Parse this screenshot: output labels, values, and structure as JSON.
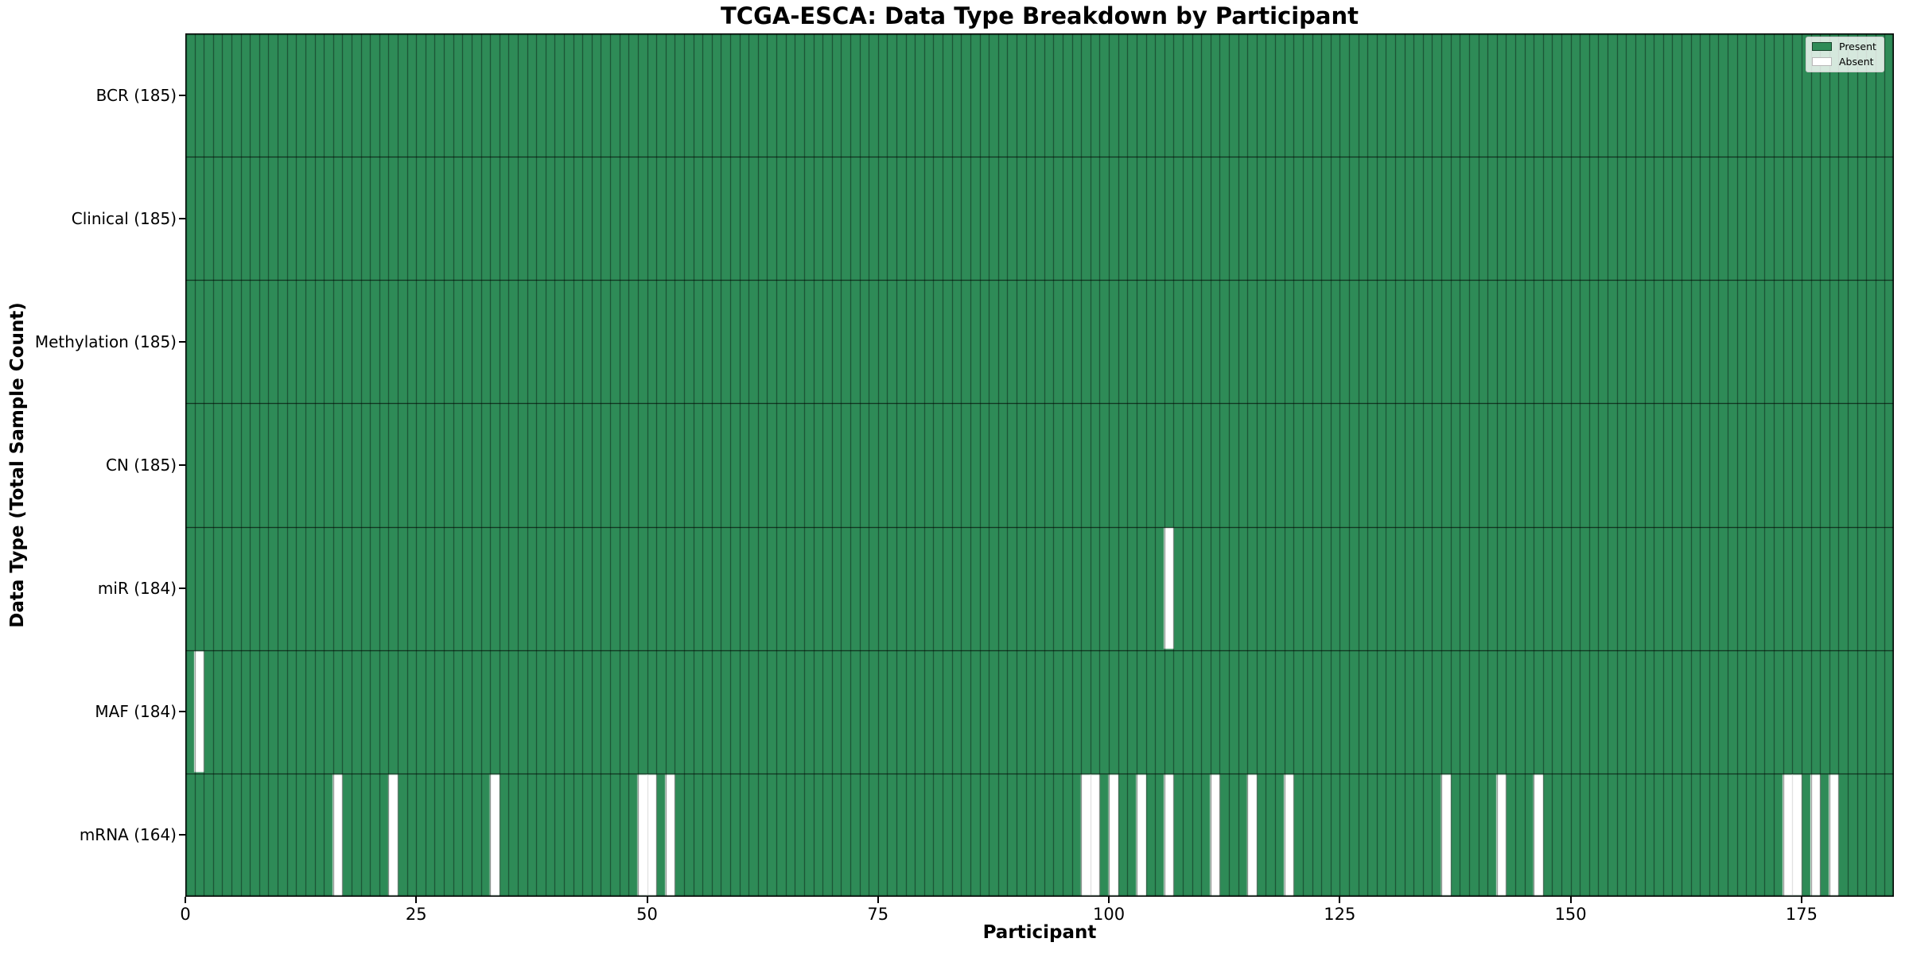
{
  "title": "TCGA-ESCA: Data Type Breakdown by Participant",
  "x_axis_label": "Participant",
  "y_axis_label": "Data Type (Total Sample Count)",
  "legend": {
    "position": "upper right",
    "items": [
      {
        "label": "Present",
        "color": "#2e8b57"
      },
      {
        "label": "Absent",
        "color": "#ffffff"
      }
    ]
  },
  "colors": {
    "present": "#2e8b57",
    "absent": "#ffffff",
    "cell_edge": "rgba(0,0,0,0.5)",
    "absent_edge": "rgba(0,0,0,0.15)",
    "row_line": "rgba(0,0,0,0.8)",
    "spine": "#000000",
    "background": "#ffffff"
  },
  "chart_data": {
    "type": "heatmap",
    "title": "TCGA-ESCA: Data Type Breakdown by Participant",
    "xlabel": "Participant",
    "ylabel": "Data Type (Total Sample Count)",
    "x_range": [
      0,
      185
    ],
    "n_participants": 185,
    "x_ticks": [
      0,
      25,
      50,
      75,
      100,
      125,
      150,
      175
    ],
    "grid": false,
    "legend_position": "upper right",
    "value_encoding": {
      "present": "green filled cell",
      "absent": "white cell"
    },
    "rows": [
      {
        "label": "BCR (185)",
        "data_type": "BCR",
        "total_samples": 185,
        "absent_participants": []
      },
      {
        "label": "Clinical (185)",
        "data_type": "Clinical",
        "total_samples": 185,
        "absent_participants": []
      },
      {
        "label": "Methylation (185)",
        "data_type": "Methylation",
        "total_samples": 185,
        "absent_participants": []
      },
      {
        "label": "CN (185)",
        "data_type": "CN",
        "total_samples": 185,
        "absent_participants": []
      },
      {
        "label": "miR (184)",
        "data_type": "miR",
        "total_samples": 184,
        "absent_participants": [
          106
        ]
      },
      {
        "label": "MAF (184)",
        "data_type": "MAF",
        "total_samples": 184,
        "absent_participants": [
          1
        ]
      },
      {
        "label": "mRNA (164)",
        "data_type": "mRNA",
        "total_samples": 164,
        "absent_participants": [
          16,
          22,
          33,
          49,
          50,
          52,
          97,
          98,
          100,
          103,
          106,
          111,
          115,
          119,
          136,
          142,
          146,
          173,
          174,
          176,
          178
        ]
      }
    ]
  }
}
